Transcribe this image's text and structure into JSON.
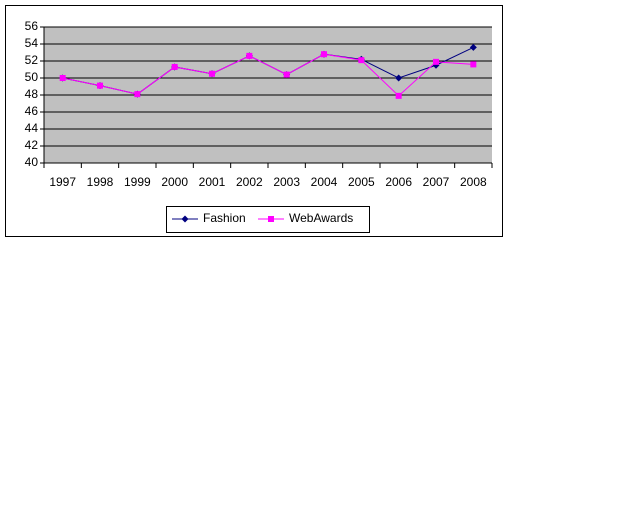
{
  "chart_data": {
    "type": "line",
    "categories": [
      "1997",
      "1998",
      "1999",
      "2000",
      "2001",
      "2002",
      "2003",
      "2004",
      "2005",
      "2006",
      "2007",
      "2008"
    ],
    "series": [
      {
        "name": "Fashion",
        "color": "#000080",
        "marker": "diamond",
        "values": [
          50.0,
          49.1,
          48.1,
          51.3,
          50.5,
          52.6,
          50.4,
          52.8,
          52.2,
          50.0,
          51.5,
          53.6
        ]
      },
      {
        "name": "WebAwards",
        "color": "#ff00ff",
        "marker": "square",
        "values": [
          50.0,
          49.1,
          48.1,
          51.3,
          50.5,
          52.6,
          50.4,
          52.8,
          52.1,
          47.9,
          51.9,
          51.6
        ]
      }
    ],
    "ylim": [
      40,
      56
    ],
    "yticks": [
      40,
      42,
      44,
      46,
      48,
      50,
      52,
      54,
      56
    ],
    "grid": true,
    "legend": "bottom"
  }
}
